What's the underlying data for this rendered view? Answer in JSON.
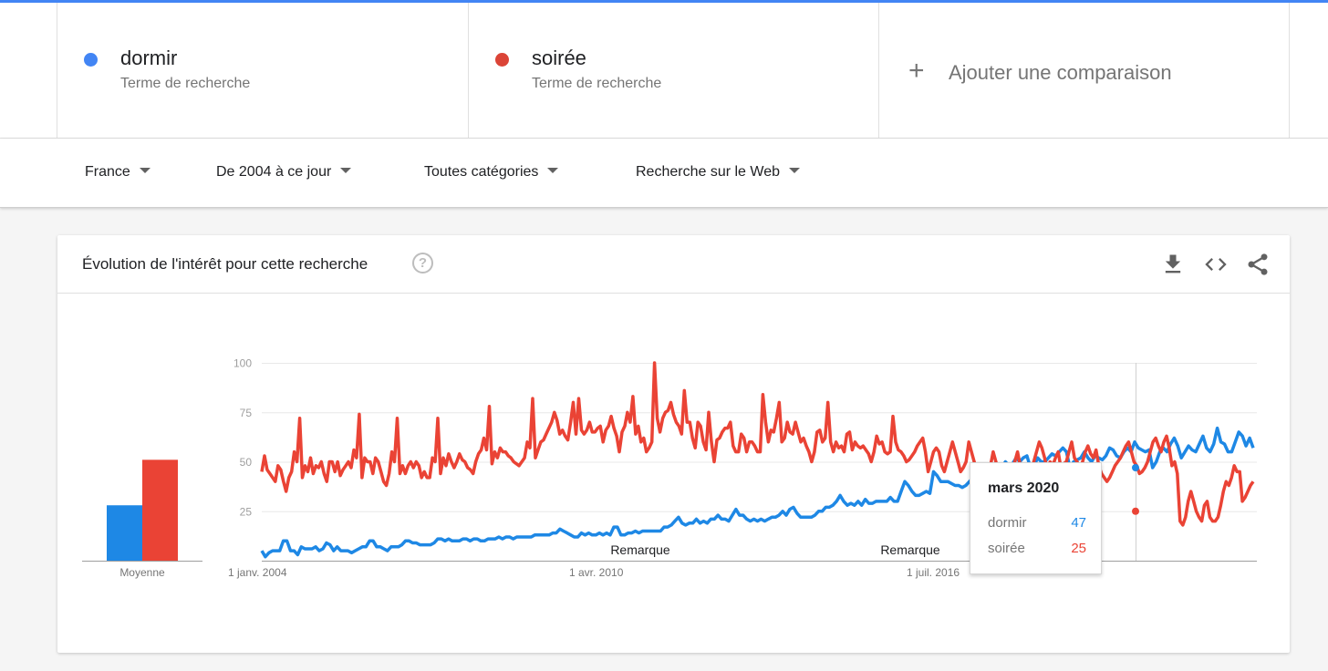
{
  "terms": [
    {
      "name": "dormir",
      "sub": "Terme de recherche",
      "color": "#4285f4"
    },
    {
      "name": "soirée",
      "sub": "Terme de recherche",
      "color": "#db4437"
    }
  ],
  "add_comparison": {
    "icon": "+",
    "label": "Ajouter une comparaison"
  },
  "filters": {
    "region": "France",
    "period": "De 2004 à ce jour",
    "category": "Toutes catégories",
    "search_type": "Recherche sur le Web"
  },
  "card": {
    "title": "Évolution de l'intérêt pour cette recherche",
    "help_icon": "help-circle-icon",
    "actions": [
      "download-icon",
      "embed-code-icon",
      "share-icon"
    ]
  },
  "chart_data": {
    "type": "line",
    "x_start": "2004-01",
    "x_end": "2021-09",
    "x_tick_labels": [
      "1 janv. 2004",
      "1 avr. 2010",
      "1 juil. 2016"
    ],
    "y_ticks": [
      25,
      50,
      75,
      100
    ],
    "ylim": [
      0,
      100
    ],
    "grid": true,
    "annotations": [
      "Remarque",
      "Remarque"
    ],
    "average": {
      "label": "Moyenne",
      "values": [
        28,
        51
      ]
    },
    "series": [
      {
        "name": "dormir",
        "color": "#1e88e5",
        "values": [
          5,
          2,
          4,
          5,
          5,
          5,
          10,
          10,
          5,
          5,
          3,
          7,
          6,
          6,
          6,
          7,
          5,
          6,
          9,
          8,
          5,
          7,
          5,
          5,
          5,
          4,
          5,
          6,
          7,
          7,
          10,
          10,
          7,
          7,
          6,
          5,
          7,
          7,
          7,
          8,
          10,
          10,
          9,
          9,
          8,
          8,
          8,
          8,
          9,
          11,
          11,
          10,
          11,
          10,
          10,
          10,
          11,
          11,
          10,
          11,
          11,
          10,
          10,
          11,
          11,
          11,
          12,
          11,
          12,
          12,
          11,
          12,
          12,
          12,
          12,
          12,
          13,
          13,
          13,
          13,
          13,
          14,
          14,
          16,
          15,
          14,
          13,
          12,
          12,
          14,
          13,
          14,
          13,
          13,
          14,
          13,
          14,
          13,
          17,
          17,
          13,
          13,
          14,
          14,
          15,
          14,
          15,
          15,
          15,
          15,
          15,
          15,
          17,
          17,
          18,
          20,
          22,
          19,
          18,
          19,
          19,
          21,
          19,
          20,
          19,
          21,
          21,
          23,
          21,
          21,
          20,
          23,
          26,
          23,
          23,
          21,
          20,
          21,
          20,
          21,
          20,
          21,
          22,
          22,
          23,
          25,
          23,
          26,
          27,
          24,
          22,
          22,
          22,
          22,
          23,
          25,
          25,
          27,
          27,
          28,
          30,
          33,
          30,
          28,
          29,
          28,
          30,
          28,
          31,
          29,
          29,
          30,
          30,
          30,
          30,
          32,
          30,
          30,
          35,
          40,
          38,
          35,
          33,
          33,
          34,
          35,
          34,
          45,
          43,
          40,
          40,
          40,
          39,
          38,
          38,
          37,
          38,
          40,
          42,
          46,
          41,
          38,
          37,
          36,
          35,
          37,
          47,
          50,
          48,
          49,
          52,
          50,
          52,
          53,
          47,
          48,
          52,
          50,
          50,
          52,
          54,
          53,
          55,
          57,
          55,
          47,
          50,
          51,
          52,
          55,
          52,
          50,
          53,
          52,
          51,
          53,
          57,
          56,
          53,
          52,
          55,
          57,
          55,
          60,
          57,
          56,
          55,
          56,
          47,
          50,
          55,
          57,
          55,
          59,
          62,
          58,
          52,
          55,
          58,
          56,
          55,
          59,
          63,
          57,
          55,
          59,
          67,
          60,
          59,
          55,
          55,
          60,
          65,
          63,
          58,
          62,
          57
        ]
      },
      {
        "name": "soirée",
        "color": "#ea4335",
        "values": [
          45,
          53,
          46,
          44,
          42,
          40,
          48,
          46,
          40,
          35,
          42,
          45,
          55,
          50,
          72,
          42,
          48,
          45,
          52,
          44,
          48,
          47,
          50,
          44,
          40,
          50,
          50,
          45,
          50,
          43,
          46,
          48,
          50,
          47,
          56,
          52,
          74,
          42,
          52,
          50,
          50,
          44,
          52,
          50,
          45,
          40,
          38,
          44,
          55,
          50,
          72,
          44,
          48,
          44,
          48,
          50,
          47,
          50,
          48,
          42,
          45,
          42,
          42,
          52,
          50,
          72,
          44,
          52,
          48,
          54,
          50,
          47,
          50,
          54,
          51,
          50,
          47,
          46,
          44,
          50,
          54,
          56,
          62,
          56,
          78,
          49,
          55,
          52,
          57,
          55,
          55,
          53,
          52,
          50,
          49,
          48,
          50,
          52,
          60,
          57,
          82,
          52,
          56,
          60,
          61,
          64,
          67,
          70,
          75,
          71,
          64,
          66,
          63,
          61,
          70,
          80,
          64,
          82,
          66,
          64,
          66,
          70,
          65,
          65,
          67,
          68,
          60,
          66,
          68,
          73,
          67,
          63,
          55,
          65,
          68,
          75,
          70,
          83,
          64,
          68,
          60,
          62,
          55,
          57,
          60,
          100,
          72,
          65,
          72,
          75,
          76,
          80,
          74,
          70,
          68,
          64,
          86,
          70,
          70,
          62,
          57,
          70,
          68,
          60,
          56,
          75,
          60,
          50,
          61,
          62,
          65,
          67,
          67,
          70,
          58,
          55,
          55,
          64,
          62,
          55,
          60,
          60,
          58,
          55,
          55,
          84,
          70,
          60,
          66,
          65,
          72,
          80,
          60,
          62,
          70,
          65,
          64,
          70,
          65,
          60,
          62,
          58,
          55,
          50,
          55,
          65,
          66,
          60,
          62,
          80,
          60,
          55,
          60,
          57,
          58,
          55,
          64,
          65,
          56,
          60,
          58,
          57,
          58,
          56,
          54,
          50,
          55,
          63,
          59,
          60,
          55,
          54,
          55,
          73,
          60,
          56,
          55,
          53,
          50,
          51,
          53,
          55,
          58,
          60,
          62,
          55,
          45,
          50,
          55,
          57,
          55,
          48,
          45,
          50,
          55,
          60,
          55,
          50,
          45,
          47,
          50,
          60,
          55,
          50,
          45,
          42,
          40,
          38,
          42,
          48,
          55,
          50,
          45,
          40,
          38,
          42,
          44,
          45,
          50,
          55,
          48,
          45,
          40,
          42,
          44,
          50,
          55,
          60,
          57,
          52,
          45,
          50,
          48,
          52,
          55,
          47,
          49,
          50,
          55,
          60,
          52,
          50,
          45,
          50,
          55,
          58,
          54,
          52,
          56,
          48,
          44,
          42,
          40,
          42,
          45,
          48,
          50,
          52,
          55,
          58,
          60,
          55,
          50,
          48,
          44,
          45,
          47,
          50,
          55,
          60,
          62,
          58,
          55,
          60,
          63,
          57,
          48,
          50,
          44,
          20,
          18,
          22,
          30,
          35,
          30,
          25,
          22,
          20,
          28,
          30,
          22,
          20,
          20,
          22,
          28,
          35,
          40,
          38,
          42,
          48,
          45,
          45,
          30,
          32,
          35,
          38,
          40
        ]
      }
    ],
    "hover": {
      "label": "mars 2020",
      "rows": [
        {
          "name": "dormir",
          "value": "47"
        },
        {
          "name": "soirée",
          "value": "25"
        }
      ]
    }
  }
}
